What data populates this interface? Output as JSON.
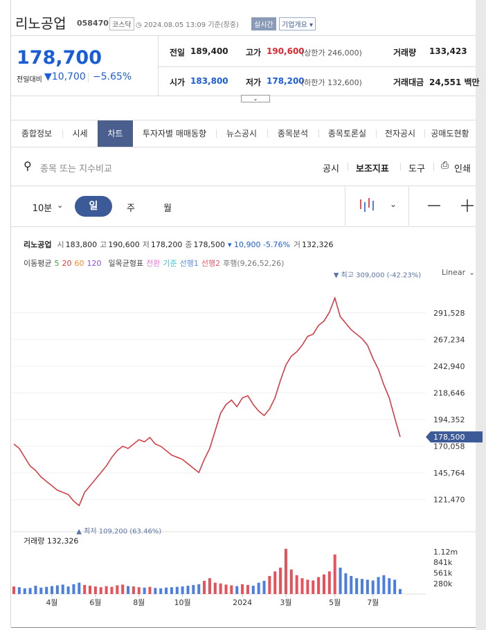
{
  "header": {
    "title": "리노공업",
    "code": "058470",
    "market": "코스닥",
    "datetime": "2024.08.05 13:09 기준(장중)",
    "realtime": "실시간",
    "company_info": "기업개요"
  },
  "price": {
    "current": "178,700",
    "change_label": "전일대비",
    "change": "10,700",
    "change_pct": "−5.65%"
  },
  "summary": [
    [
      {
        "label": "전일",
        "value": "189,400"
      },
      {
        "label": "고가",
        "value": "190,600",
        "note": "(상한가 246,000)"
      },
      {
        "label": "거래량",
        "value": "133,423"
      }
    ],
    [
      {
        "label": "시가",
        "value": "183,800"
      },
      {
        "label": "저가",
        "value": "178,200",
        "note": "(하한가 132,600)"
      },
      {
        "label": "거래대금",
        "value": "24,551 백만"
      }
    ]
  ],
  "tabs": [
    "종합정보",
    "시세",
    "차트",
    "투자자별 매매동향",
    "뉴스공시",
    "종목분석",
    "종목토론실",
    "전자공시",
    "공매도현황"
  ],
  "search": {
    "placeholder": "종목 또는 지수비교",
    "tools": [
      "공시",
      "보조지표",
      "도구",
      "인쇄"
    ]
  },
  "periods": [
    "10분",
    "일",
    "주",
    "월"
  ],
  "chart_info": {
    "name": "리노공업",
    "items": [
      [
        "시",
        "183,800"
      ],
      [
        "고",
        "190,600"
      ],
      [
        "저",
        "178,200"
      ],
      [
        "종",
        "178,500"
      ]
    ],
    "change": "▾ 10,900 -5.76%",
    "volume": [
      "거",
      "132,326"
    ]
  },
  "indicators": {
    "ma_label": "이동평균",
    "ma": [
      {
        "name": "5",
        "color": "#2eaa3c"
      },
      {
        "name": "20",
        "color": "#e23c3c"
      },
      {
        "name": "60",
        "color": "#f08a24"
      },
      {
        "name": "120",
        "color": "#8a4fd8"
      }
    ],
    "ichimoku_label": "일목균형표",
    "ichimoku": [
      {
        "name": "전환",
        "color": "#e87ad6"
      },
      {
        "name": "기준",
        "color": "#3cc3d8"
      },
      {
        "name": "선행1",
        "color": "#5a8de0"
      },
      {
        "name": "선행2",
        "color": "#e85a6a"
      },
      {
        "name": "후행(9,26,52,26)",
        "color": "#777777"
      }
    ]
  },
  "chart_data": [
    {
      "type": "line",
      "scale": "Linear",
      "color": "#d8313a",
      "grid": true,
      "values": [
        172000,
        168000,
        160000,
        152000,
        148000,
        142000,
        138000,
        134000,
        130000,
        128000,
        126000,
        120000,
        116000,
        128000,
        134000,
        140000,
        146000,
        152000,
        160000,
        166000,
        170000,
        168000,
        172000,
        176000,
        174000,
        178000,
        172000,
        170000,
        166000,
        162000,
        160000,
        158000,
        154000,
        150000,
        146000,
        158000,
        168000,
        184000,
        200000,
        208000,
        212000,
        206000,
        214000,
        216000,
        208000,
        202000,
        198000,
        204000,
        214000,
        230000,
        244000,
        252000,
        256000,
        262000,
        270000,
        272000,
        280000,
        284000,
        292000,
        305000,
        288000,
        282000,
        276000,
        272000,
        268000,
        262000,
        250000,
        240000,
        226000,
        214000,
        196000,
        178500
      ],
      "ylim": [
        96000,
        321000
      ],
      "yticks": [
        {
          "value": 121470,
          "label": "121,470"
        },
        {
          "value": 145764,
          "label": "145,764"
        },
        {
          "value": 170058,
          "label": "170,058"
        },
        {
          "value": 194352,
          "label": "194,352"
        },
        {
          "value": 218646,
          "label": "218,646"
        },
        {
          "value": 242940,
          "label": "242,940"
        },
        {
          "value": 267234,
          "label": "267,234"
        },
        {
          "value": 291528,
          "label": "291,528"
        }
      ],
      "last_label": "178,500",
      "annotations": {
        "high": "▼ 최고 309,000 (-42.23%)",
        "low": "▲ 최저 109,200 (63.46%)"
      }
    },
    {
      "type": "bar",
      "title": "거래량 132,326",
      "up_color": "#e8505a",
      "down_color": "#4a7ee0",
      "categories": [
        null,
        null,
        null,
        null,
        null,
        null,
        null,
        "4월",
        null,
        null,
        null,
        null,
        null,
        null,
        null,
        "6월",
        null,
        null,
        null,
        null,
        null,
        null,
        null,
        "8월",
        null,
        null,
        null,
        null,
        null,
        null,
        null,
        "10월",
        null,
        null,
        null,
        null,
        null,
        null,
        null,
        null,
        null,
        null,
        "2024",
        null,
        null,
        null,
        null,
        null,
        null,
        null,
        "3월",
        null,
        null,
        null,
        null,
        null,
        null,
        null,
        null,
        "5월",
        null,
        null,
        null,
        null,
        null,
        null,
        "7월",
        null,
        null,
        null,
        null,
        null
      ],
      "values": [
        200000,
        180000,
        150000,
        160000,
        220000,
        170000,
        190000,
        210000,
        230000,
        250000,
        200000,
        260000,
        300000,
        240000,
        220000,
        200000,
        180000,
        210000,
        190000,
        230000,
        250000,
        210000,
        200000,
        180000,
        170000,
        190000,
        160000,
        150000,
        170000,
        180000,
        190000,
        200000,
        220000,
        240000,
        260000,
        350000,
        420000,
        300000,
        280000,
        250000,
        230000,
        210000,
        260000,
        240000,
        220000,
        300000,
        350000,
        480000,
        600000,
        700000,
        1200000,
        650000,
        500000,
        420000,
        380000,
        360000,
        450000,
        520000,
        600000,
        1050000,
        700000,
        550000,
        480000,
        420000,
        400000,
        380000,
        360000,
        450000,
        500000,
        420000,
        380000,
        132326
      ],
      "ylim": [
        0,
        1250000
      ],
      "yticks": [
        {
          "value": 280000,
          "label": "280k"
        },
        {
          "value": 561000,
          "label": "561k"
        },
        {
          "value": 841000,
          "label": "841k"
        },
        {
          "value": 1120000,
          "label": "1.12m"
        }
      ]
    }
  ]
}
